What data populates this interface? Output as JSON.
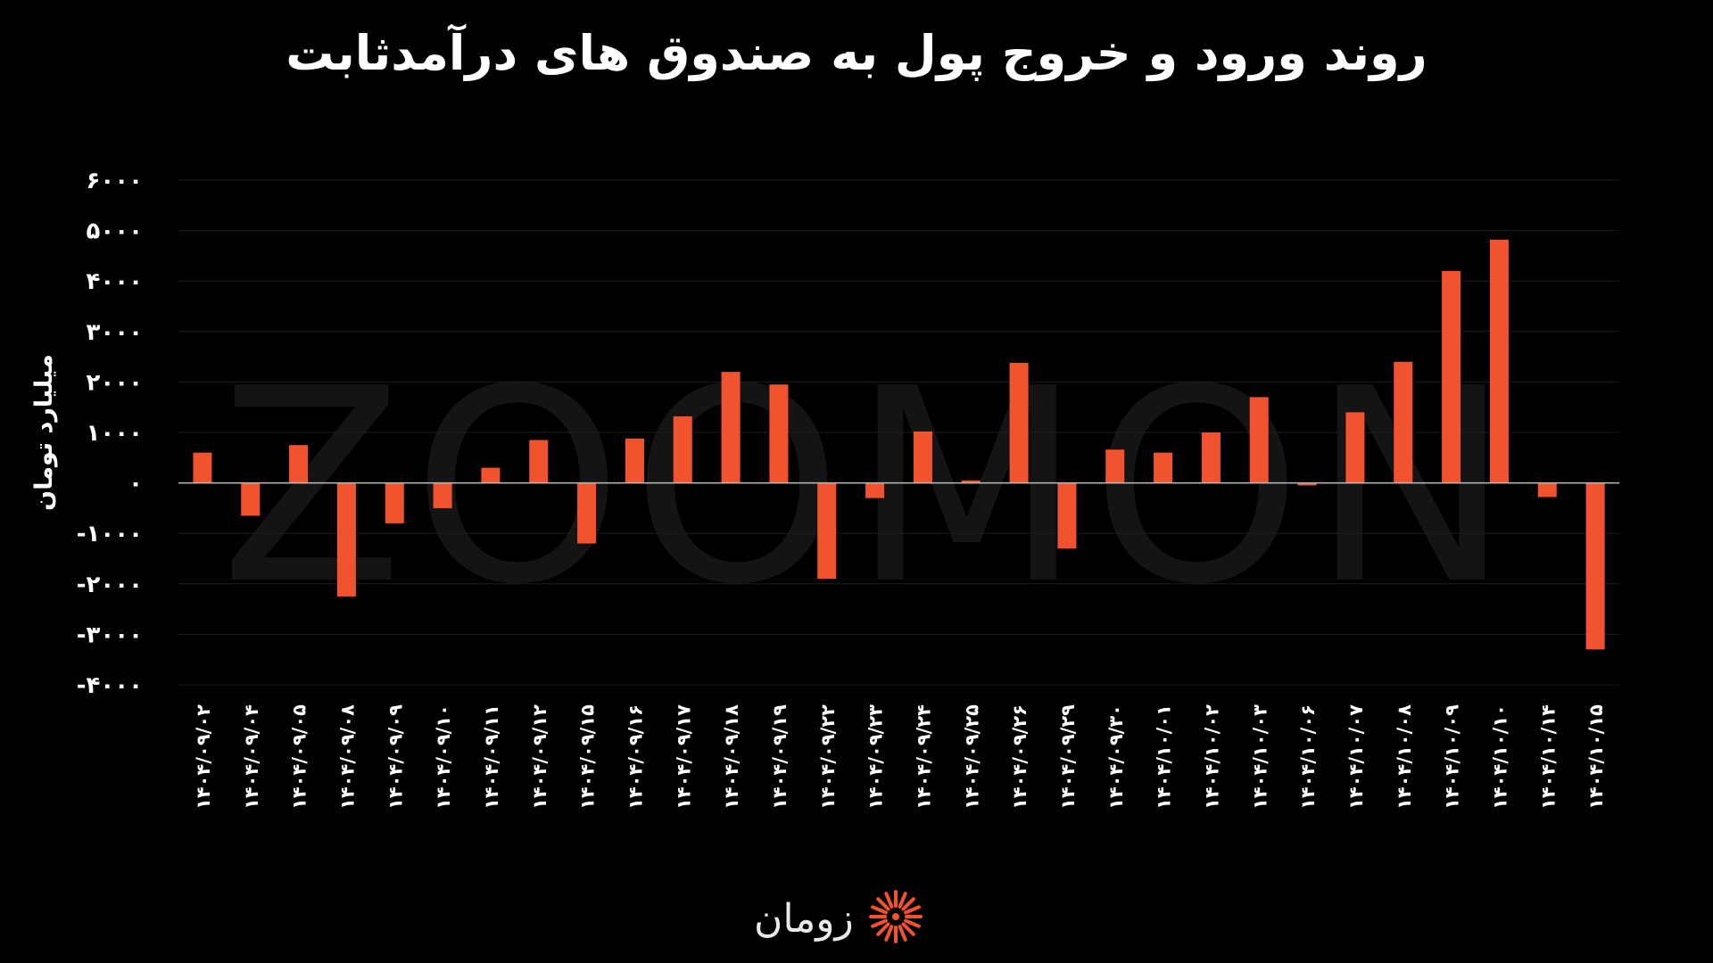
{
  "colors": {
    "background": "#000000",
    "bar": "#f2532f",
    "grid": "#1c1c1c",
    "zero_line": "#bdbdbd",
    "text": "#ffffff",
    "watermark": "#141414",
    "logo_accent": "#f2532f"
  },
  "watermark_text": "ZOOMON",
  "logo": {
    "text": "زومان",
    "icon": "sunburst-logo-icon"
  },
  "chart_data": {
    "type": "bar",
    "title": "روند ورود و خروج پول به صندوق های درآمدثابت",
    "xlabel": "",
    "ylabel": "میلیارد تومان",
    "ylim": [
      -4000,
      6000
    ],
    "yticks": [
      6000,
      5000,
      4000,
      3000,
      2000,
      1000,
      0,
      -1000,
      -2000,
      -3000,
      -4000
    ],
    "ytick_labels": [
      "۶۰۰۰",
      "۵۰۰۰",
      "۴۰۰۰",
      "۳۰۰۰",
      "۲۰۰۰",
      "۱۰۰۰",
      "۰",
      "-۱۰۰۰",
      "-۲۰۰۰",
      "-۳۰۰۰",
      "-۴۰۰۰"
    ],
    "grid": true,
    "legend": "none",
    "categories": [
      "۱۴۰۴/۰۹/۰۲",
      "۱۴۰۴/۰۹/۰۴",
      "۱۴۰۴/۰۹/۰۵",
      "۱۴۰۴/۰۹/۰۸",
      "۱۴۰۴/۰۹/۰۹",
      "۱۴۰۴/۰۹/۱۰",
      "۱۴۰۴/۰۹/۱۱",
      "۱۴۰۴/۰۹/۱۲",
      "۱۴۰۴/۰۹/۱۵",
      "۱۴۰۴/۰۹/۱۶",
      "۱۴۰۴/۰۹/۱۷",
      "۱۴۰۴/۰۹/۱۸",
      "۱۴۰۴/۰۹/۱۹",
      "۱۴۰۴/۰۹/۲۲",
      "۱۴۰۴/۰۹/۲۳",
      "۱۴۰۴/۰۹/۲۴",
      "۱۴۰۴/۰۹/۲۵",
      "۱۴۰۴/۰۹/۲۶",
      "۱۴۰۴/۰۹/۲۹",
      "۱۴۰۴/۰۹/۳۰",
      "۱۴۰۴/۱۰/۰۱",
      "۱۴۰۴/۱۰/۰۲",
      "۱۴۰۴/۱۰/۰۳",
      "۱۴۰۴/۱۰/۰۶",
      "۱۴۰۴/۱۰/۰۷",
      "۱۴۰۴/۱۰/۰۸",
      "۱۴۰۴/۱۰/۰۹",
      "۱۴۰۴/۱۰/۱۰",
      "۱۴۰۴/۱۰/۱۴",
      "۱۴۰۴/۱۰/۱۵"
    ],
    "values": [
      600,
      -650,
      750,
      -2250,
      -800,
      -500,
      300,
      850,
      -1200,
      880,
      1320,
      2200,
      1950,
      -1900,
      -300,
      1020,
      50,
      2380,
      -1300,
      660,
      600,
      1000,
      1700,
      -50,
      1400,
      2400,
      4200,
      4820,
      -280,
      -3300
    ]
  }
}
